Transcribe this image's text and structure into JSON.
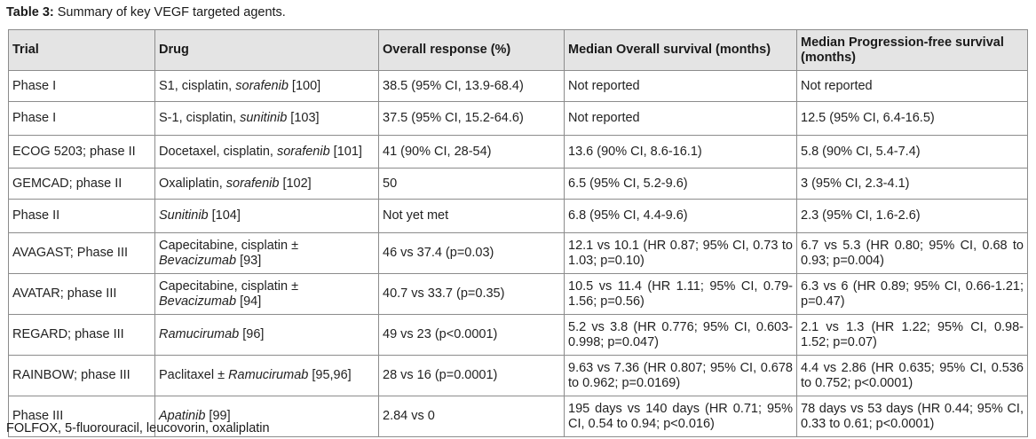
{
  "caption": {
    "label": "Table 3:",
    "text": "Summary of key VEGF targeted agents."
  },
  "table": {
    "headers": [
      "Trial",
      "Drug",
      "Overall response (%)",
      "Median Overall survival (months)",
      "Median Progression-free survival (months)"
    ],
    "rows": [
      {
        "trial": "Phase I",
        "drug_pre": "S1, cisplatin, ",
        "drug_em": "sorafenib",
        "drug_post": " [100]",
        "response": "38.5 (95% CI, 13.9-68.4)",
        "os": "Not reported",
        "pfs": "Not reported"
      },
      {
        "trial": "Phase I",
        "drug_pre": "S-1, cisplatin, ",
        "drug_em": "sunitinib",
        "drug_post": " [103]",
        "response": "37.5 (95% CI, 15.2-64.6)",
        "os": "Not reported",
        "pfs": "12.5 (95% CI, 6.4-16.5)"
      },
      {
        "trial": "ECOG 5203; phase II",
        "drug_pre": "Docetaxel, cisplatin, ",
        "drug_em": "sorafenib",
        "drug_post": " [101]",
        "response": "41 (90% CI, 28-54)",
        "os": "13.6 (90% CI, 8.6-16.1)",
        "pfs": "5.8 (90% CI, 5.4-7.4)"
      },
      {
        "trial": "GEMCAD; phase II",
        "drug_pre": "Oxaliplatin, ",
        "drug_em": "sorafenib",
        "drug_post": " [102]",
        "response": "50",
        "os": "6.5 (95% CI, 5.2-9.6)",
        "pfs": "3 (95% CI, 2.3-4.1)"
      },
      {
        "trial": "Phase II",
        "drug_pre": "",
        "drug_em": "Sunitinib",
        "drug_post": " [104]",
        "response": "Not yet met",
        "os": "6.8 (95% CI, 4.4-9.6)",
        "pfs": "2.3 (95% CI, 1.6-2.6)"
      },
      {
        "trial": "AVAGAST; Phase III",
        "drug_pre": "Capecitabine, cisplatin ± ",
        "drug_em": "Bevacizumab",
        "drug_post": " [93]",
        "response": "46 vs 37.4 (p=0.03)",
        "os": "12.1 vs 10.1 (HR 0.87; 95% CI, 0.73 to 1.03; p=0.10)",
        "pfs": "6.7 vs 5.3 (HR 0.80; 95% CI, 0.68 to 0.93; p=0.004)"
      },
      {
        "trial": "AVATAR; phase III",
        "drug_pre": "Capecitabine, cisplatin ± ",
        "drug_em": "Bevacizumab",
        "drug_post": " [94]",
        "response": "40.7 vs 33.7 (p=0.35)",
        "os": "10.5 vs 11.4 (HR 1.11; 95% CI, 0.79-1.56; p=0.56)",
        "pfs": "6.3 vs 6 (HR 0.89; 95% CI, 0.66-1.21; p=0.47)"
      },
      {
        "trial": "REGARD; phase III",
        "drug_pre": "",
        "drug_em": "Ramucirumab",
        "drug_post": " [96]",
        "response": "49 vs 23 (p<0.0001)",
        "os": "5.2 vs 3.8 (HR 0.776; 95% CI, 0.603-0.998; p=0.047)",
        "pfs": "2.1 vs 1.3 (HR 1.22; 95% CI, 0.98-1.52; p=0.07)"
      },
      {
        "trial": "RAINBOW; phase III",
        "drug_pre": "Paclitaxel ± ",
        "drug_em": "Ramucirumab",
        "drug_post": " [95,96]",
        "response": "28 vs 16 (p=0.0001)",
        "os": "9.63 vs 7.36 (HR 0.807; 95% CI, 0.678 to 0.962; p=0.0169)",
        "pfs": "4.4 vs 2.86 (HR 0.635; 95% CI, 0.536 to 0.752; p<0.0001)"
      },
      {
        "trial": "Phase III",
        "drug_pre": "",
        "drug_em": "Apatinib",
        "drug_post": " [99]",
        "response": "2.84 vs 0",
        "os": "195 days vs 140 days (HR 0.71; 95% CI, 0.54 to 0.94; p<0.016)",
        "pfs": "78 days vs 53 days (HR 0.44; 95% CI, 0.33 to 0.61; p<0.0001)"
      }
    ]
  },
  "footnote": "FOLFOX, 5-fluorouracil, leucovorin, oxaliplatin"
}
